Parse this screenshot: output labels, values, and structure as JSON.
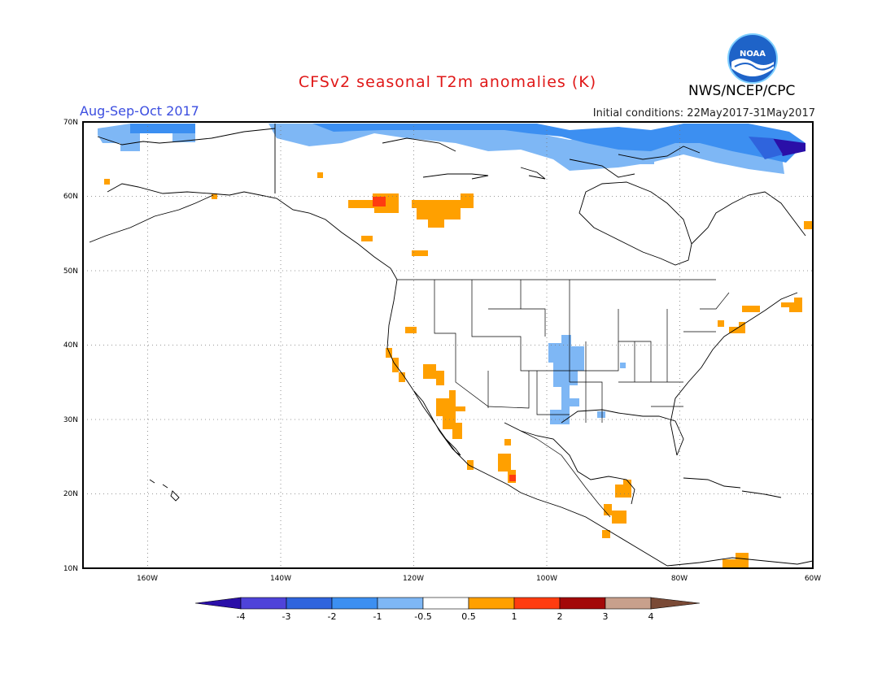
{
  "header": {
    "title": "CFSv2 seasonal T2m anomalies (K)",
    "period": "Aug-Sep-Oct 2017",
    "initial_conditions": "Initial conditions: 22May2017-31May2017",
    "agency": "NWS/NCEP/CPC",
    "logo_text": "NOAA"
  },
  "map": {
    "lat_labels": [
      "70N",
      "60N",
      "50N",
      "40N",
      "30N",
      "20N",
      "10N"
    ],
    "lon_labels": [
      "160W",
      "140W",
      "120W",
      "100W",
      "80W",
      "60W"
    ],
    "grid": true,
    "grid_style": "dotted"
  },
  "colorbar": {
    "labels": [
      "-4",
      "-3",
      "-2",
      "-1",
      "-0.5",
      "0.5",
      "1",
      "2",
      "3",
      "4"
    ],
    "bins": [
      {
        "color": "#2a0fa8"
      },
      {
        "color": "#4f43d9"
      },
      {
        "color": "#2f64dd"
      },
      {
        "color": "#3c8ff1"
      },
      {
        "color": "#7eb7f5"
      },
      {
        "color": "#ffffff"
      },
      {
        "color": "#ffa000"
      },
      {
        "color": "#ff3c10"
      },
      {
        "color": "#a30808"
      },
      {
        "color": "#c8a08c"
      },
      {
        "color": "#7a4a36"
      }
    ]
  }
}
